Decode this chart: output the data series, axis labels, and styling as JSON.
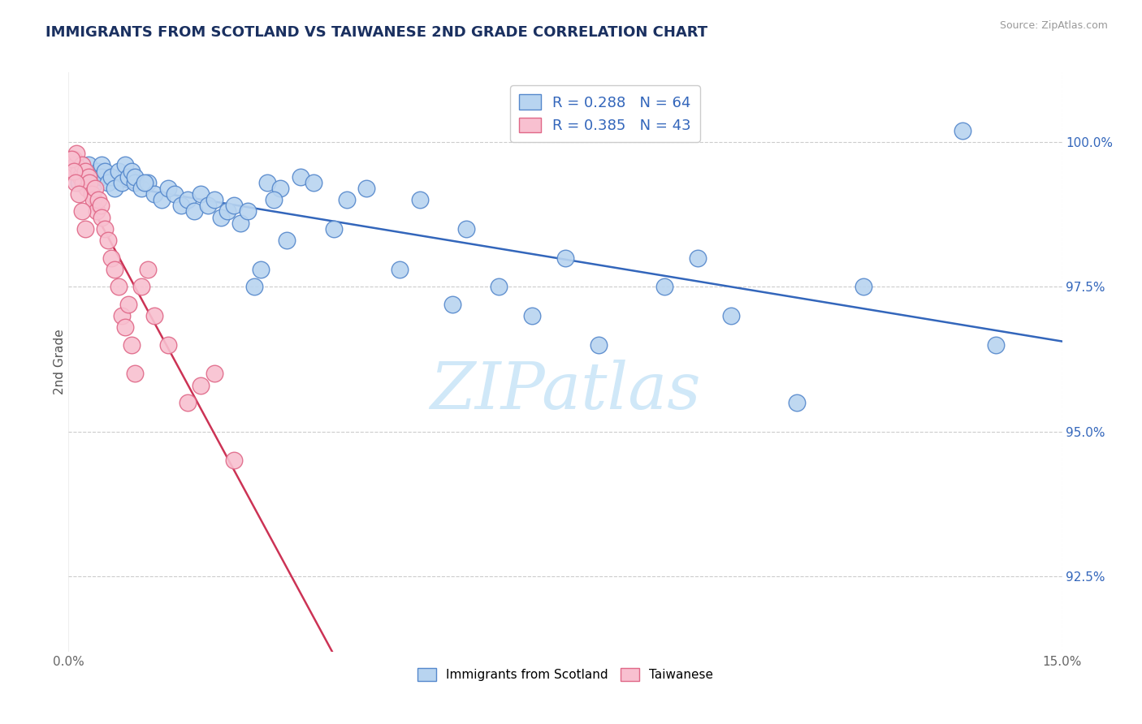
{
  "title": "IMMIGRANTS FROM SCOTLAND VS TAIWANESE 2ND GRADE CORRELATION CHART",
  "source": "Source: ZipAtlas.com",
  "xlabel_ticks": [
    "0.0%",
    "15.0%"
  ],
  "ylabel_left": "2nd Grade",
  "ylabel_right_ticks": [
    "92.5%",
    "95.0%",
    "97.5%",
    "100.0%"
  ],
  "xmin": 0.0,
  "xmax": 15.0,
  "ymin": 91.2,
  "ymax": 101.2,
  "series1_label": "Immigrants from Scotland",
  "series1_color": "#b8d4f0",
  "series1_edge_color": "#5588cc",
  "series1_R": "0.288",
  "series1_N": "64",
  "series2_label": "Taiwanese",
  "series2_color": "#f8c0d0",
  "series2_edge_color": "#e06888",
  "series2_R": "0.385",
  "series2_N": "43",
  "trend1_color": "#3366bb",
  "trend2_color": "#cc3355",
  "watermark_text": "ZIPatlas",
  "watermark_color": "#d0e8f8",
  "background_color": "#ffffff",
  "grid_color": "#cccccc",
  "title_color": "#1a3060",
  "source_color": "#999999",
  "legend_text_color": "#3366bb",
  "scatter1_x": [
    0.15,
    0.2,
    0.3,
    0.35,
    0.4,
    0.45,
    0.5,
    0.5,
    0.55,
    0.6,
    0.65,
    0.7,
    0.75,
    0.8,
    0.85,
    0.9,
    0.95,
    1.0,
    1.0,
    1.1,
    1.2,
    1.3,
    1.4,
    1.5,
    1.6,
    1.7,
    1.8,
    1.9,
    2.0,
    2.1,
    2.2,
    2.3,
    2.4,
    2.5,
    2.6,
    2.7,
    2.8,
    3.0,
    3.2,
    3.5,
    3.7,
    4.0,
    4.2,
    4.5,
    5.0,
    5.3,
    5.8,
    6.0,
    6.5,
    7.0,
    7.5,
    8.0,
    9.0,
    9.5,
    10.0,
    11.0,
    12.0,
    13.5,
    14.0,
    2.9,
    3.1,
    3.3,
    1.15,
    0.25
  ],
  "scatter1_y": [
    99.3,
    99.5,
    99.6,
    99.4,
    99.3,
    99.5,
    99.6,
    99.4,
    99.5,
    99.3,
    99.4,
    99.2,
    99.5,
    99.3,
    99.6,
    99.4,
    99.5,
    99.3,
    99.4,
    99.2,
    99.3,
    99.1,
    99.0,
    99.2,
    99.1,
    98.9,
    99.0,
    98.8,
    99.1,
    98.9,
    99.0,
    98.7,
    98.8,
    98.9,
    98.6,
    98.8,
    97.5,
    99.3,
    99.2,
    99.4,
    99.3,
    98.5,
    99.0,
    99.2,
    97.8,
    99.0,
    97.2,
    98.5,
    97.5,
    97.0,
    98.0,
    96.5,
    97.5,
    98.0,
    97.0,
    95.5,
    97.5,
    100.2,
    96.5,
    97.8,
    99.0,
    98.3,
    99.3,
    99.4
  ],
  "scatter2_x": [
    0.05,
    0.08,
    0.1,
    0.12,
    0.15,
    0.18,
    0.2,
    0.22,
    0.25,
    0.28,
    0.3,
    0.32,
    0.35,
    0.38,
    0.4,
    0.42,
    0.45,
    0.48,
    0.5,
    0.55,
    0.6,
    0.65,
    0.7,
    0.75,
    0.8,
    0.85,
    0.9,
    0.95,
    1.0,
    1.1,
    1.2,
    1.3,
    1.5,
    1.8,
    2.0,
    2.2,
    2.5,
    0.05,
    0.08,
    0.1,
    0.15,
    0.2,
    0.25
  ],
  "scatter2_y": [
    99.5,
    99.7,
    99.6,
    99.8,
    99.5,
    99.4,
    99.6,
    99.3,
    99.5,
    99.2,
    99.4,
    99.3,
    99.1,
    99.0,
    99.2,
    98.8,
    99.0,
    98.9,
    98.7,
    98.5,
    98.3,
    98.0,
    97.8,
    97.5,
    97.0,
    96.8,
    97.2,
    96.5,
    96.0,
    97.5,
    97.8,
    97.0,
    96.5,
    95.5,
    95.8,
    96.0,
    94.5,
    99.7,
    99.5,
    99.3,
    99.1,
    98.8,
    98.5
  ]
}
